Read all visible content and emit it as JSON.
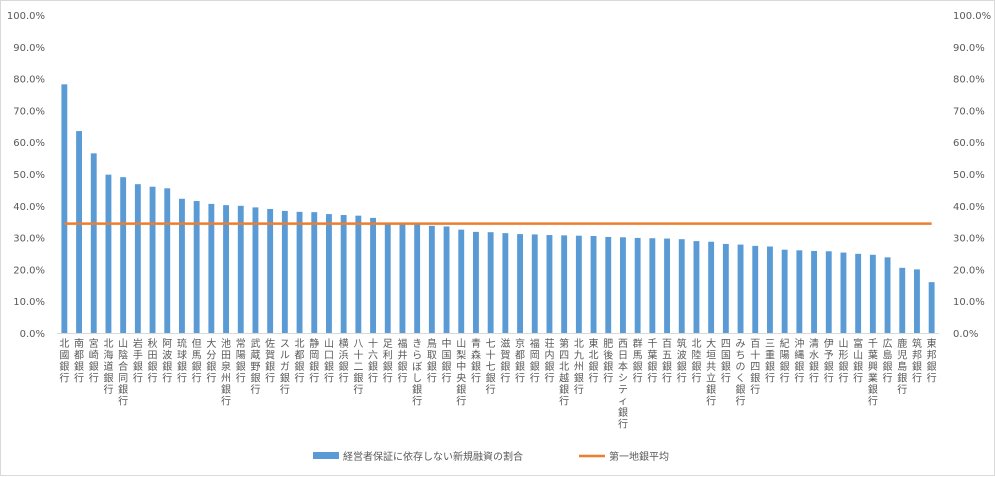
{
  "chart_data": {
    "type": "bar",
    "ylim": [
      0,
      1
    ],
    "yticks": [
      "0.0%",
      "10.0%",
      "20.0%",
      "30.0%",
      "40.0%",
      "50.0%",
      "60.0%",
      "70.0%",
      "80.0%",
      "90.0%",
      "100.0%"
    ],
    "grid": false,
    "legend_position": "bottom",
    "categories": [
      "北國銀行",
      "南都銀行",
      "宮崎銀行",
      "北海道銀行",
      "山陰合同銀行",
      "岩手銀行",
      "秋田銀行",
      "阿波銀行",
      "琉球銀行",
      "但馬銀行",
      "大分銀行",
      "池田泉州銀行",
      "常陽銀行",
      "武蔵野銀行",
      "佐賀銀行",
      "スルガ銀行",
      "北都銀行",
      "静岡銀行",
      "山口銀行",
      "横浜銀行",
      "八十二銀行",
      "十六銀行",
      "足利銀行",
      "福井銀行",
      "きらぼし銀行",
      "鳥取銀行",
      "中国銀行",
      "山梨中央銀行",
      "青森銀行",
      "七十七銀行",
      "滋賀銀行",
      "京都銀行",
      "福岡銀行",
      "荘内銀行",
      "第四北越銀行",
      "北九州銀行",
      "東北銀行",
      "肥後銀行",
      "西日本シティ銀行",
      "群馬銀行",
      "千葉銀行",
      "百五銀行",
      "筑波銀行",
      "北陸銀行",
      "大垣共立銀行",
      "四国銀行",
      "みちのく銀行",
      "百十四銀行",
      "三重銀行",
      "紀陽銀行",
      "沖縄銀行",
      "清水銀行",
      "伊予銀行",
      "山形銀行",
      "富山銀行",
      "千葉興業銀行",
      "広島銀行",
      "鹿児島銀行",
      "筑邦銀行",
      "東邦銀行"
    ],
    "series": [
      {
        "name": "経営者保証に依存しない新規融資の割合",
        "type": "bar",
        "color": "#5b9bd5",
        "values": [
          0.782,
          0.635,
          0.565,
          0.498,
          0.49,
          0.468,
          0.46,
          0.455,
          0.422,
          0.415,
          0.406,
          0.402,
          0.4,
          0.395,
          0.39,
          0.384,
          0.381,
          0.38,
          0.374,
          0.371,
          0.369,
          0.362,
          0.347,
          0.346,
          0.342,
          0.337,
          0.335,
          0.325,
          0.318,
          0.317,
          0.314,
          0.311,
          0.31,
          0.308,
          0.307,
          0.306,
          0.305,
          0.302,
          0.301,
          0.299,
          0.298,
          0.297,
          0.295,
          0.289,
          0.287,
          0.28,
          0.278,
          0.274,
          0.272,
          0.262,
          0.26,
          0.258,
          0.257,
          0.253,
          0.249,
          0.246,
          0.238,
          0.205,
          0.2,
          0.16
        ]
      },
      {
        "name": "第一地銀平均",
        "type": "line",
        "color": "#ed7d31",
        "value": 0.344
      }
    ]
  }
}
